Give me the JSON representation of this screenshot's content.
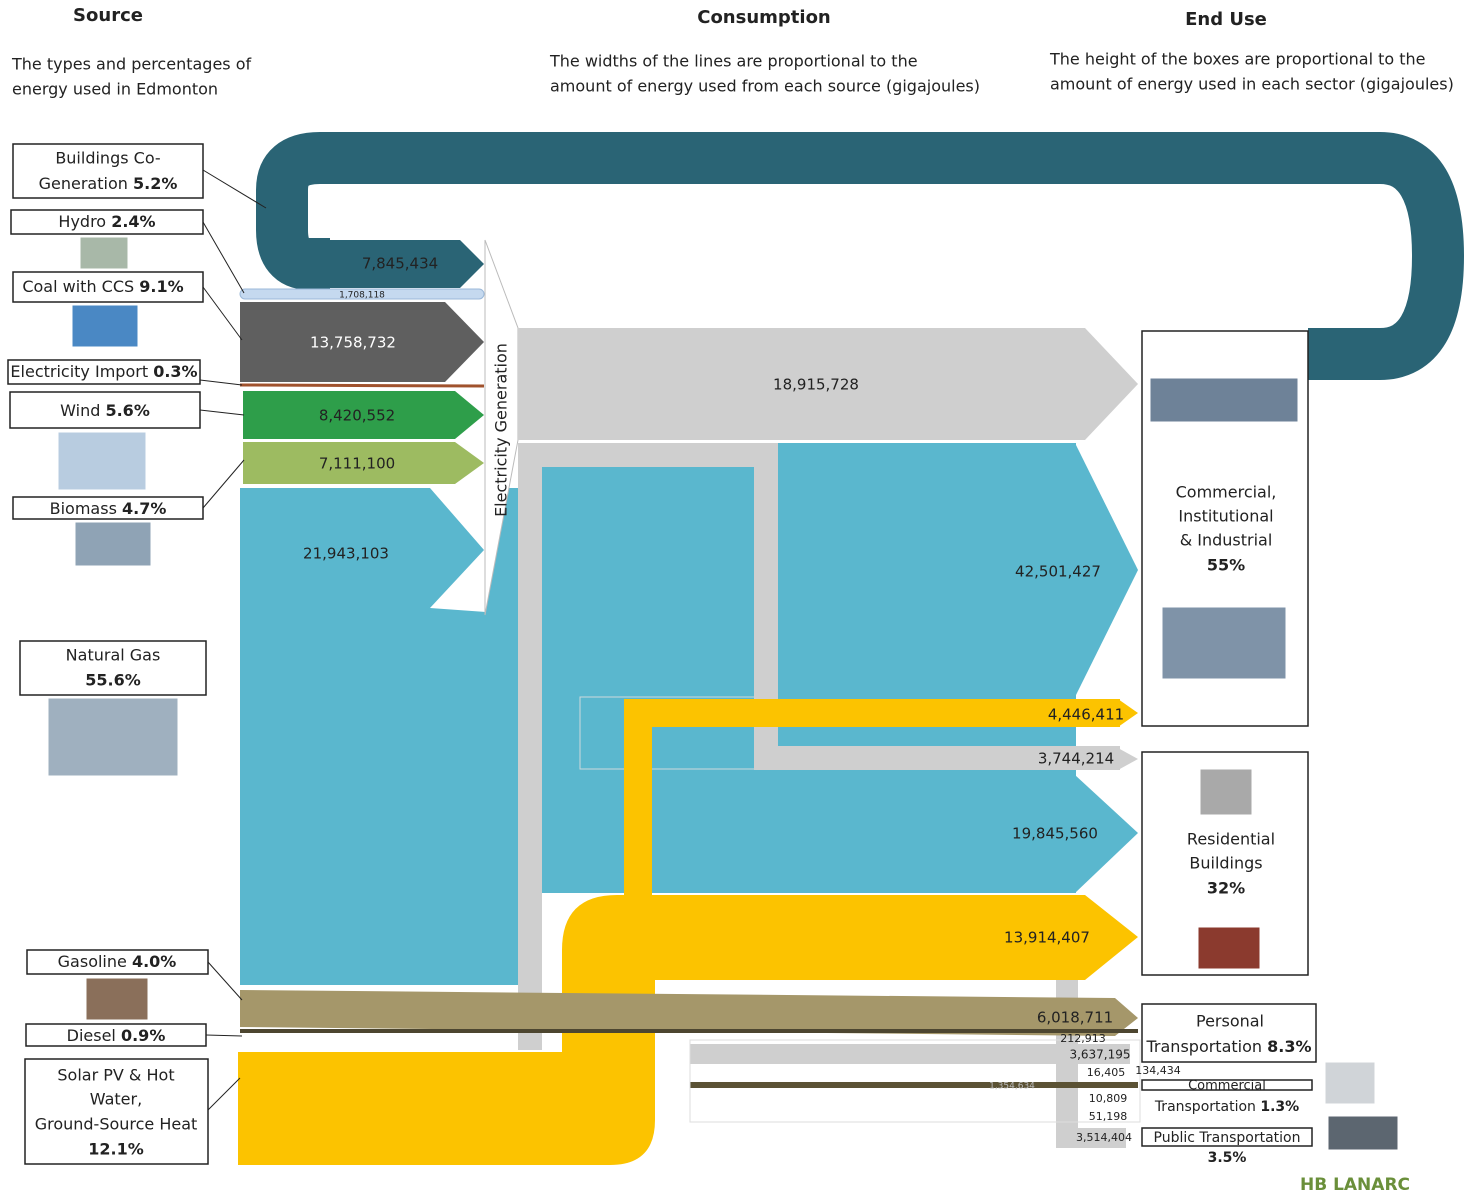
{
  "headers": [
    {
      "title": "Source",
      "lines": [
        "The types and percentages of",
        "energy used in Edmonton"
      ]
    },
    {
      "title": "Consumption",
      "lines": [
        "The widths of the lines are proportional to the",
        "amount of energy used from each source (gigajoules)"
      ]
    },
    {
      "title": "End Use",
      "lines": [
        "The height of the boxes are proportional to the",
        "amount of energy used in each sector (gigajoules)"
      ]
    }
  ],
  "sources": [
    {
      "lines": [
        "Buildings Co-",
        "Generation"
      ],
      "pct": "5.2%"
    },
    {
      "lines": [
        "Hydro"
      ],
      "pct": "2.4%"
    },
    {
      "lines": [
        "Coal with CCS"
      ],
      "pct": "9.1%"
    },
    {
      "lines": [
        "Electricity Import"
      ],
      "pct": "0.3%"
    },
    {
      "lines": [
        "Wind"
      ],
      "pct": "5.6%"
    },
    {
      "lines": [
        "Biomass"
      ],
      "pct": "4.7%"
    },
    {
      "lines": [
        "Natural Gas"
      ],
      "pct": "55.6%"
    },
    {
      "lines": [
        "Gasoline"
      ],
      "pct": "4.0%"
    },
    {
      "lines": [
        "Diesel"
      ],
      "pct": "0.9%"
    },
    {
      "lines": [
        "Solar PV & Hot",
        "Water,",
        "Ground-Source Heat"
      ],
      "pct": "12.1%"
    }
  ],
  "electricity_generation": "Electricity Generation",
  "flows": [
    "7,845,434",
    "1,708,118",
    "13,758,732",
    "8,420,552",
    "7,111,100",
    "21,943,103",
    "18,915,728",
    "42,501,427",
    "4,446,411",
    "3,744,214",
    "19,845,560",
    "13,914,407",
    "6,018,711",
    "212,913",
    "3,637,195",
    "16,405",
    "134,434",
    "1,354,634",
    "10,809",
    "51,198",
    "3,514,404"
  ],
  "end_uses": [
    {
      "lines": [
        "Commercial,",
        "Institutional",
        "& Industrial"
      ],
      "pct": "55%"
    },
    {
      "lines": [
        "Residential",
        "Buildings"
      ],
      "pct": "32%"
    },
    {
      "lines": [
        "Personal",
        "Transportation"
      ],
      "pct": "8.3%"
    },
    {
      "lines": [
        "Commercial",
        "Transportation"
      ],
      "pct": "1.3%"
    },
    {
      "lines": [
        "Public Transportation"
      ],
      "pct": "3.5%"
    }
  ],
  "logo": "HB LANARC"
}
